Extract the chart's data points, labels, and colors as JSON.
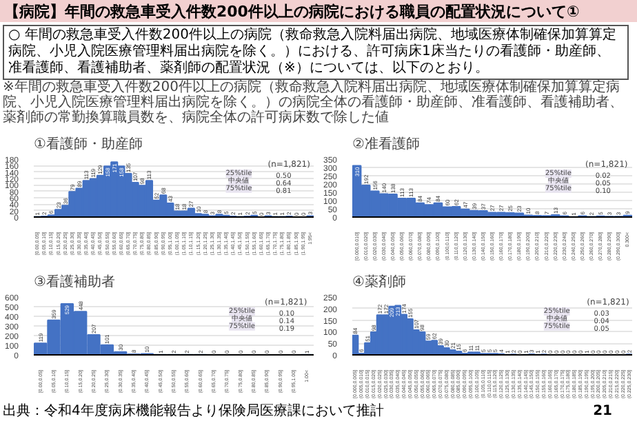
{
  "chart_data": [
    {
      "type": "other",
      "title": "【病院】年間の救急車受入件数200件以上の病院における職員の配置状況について①",
      "annotations": [
        "○ 年間の救急車受入件数200件以上の病院（救命救急入院料届出病院、地域医療体制確保加算算定病院、小児入院医療管理料届出病院を除く。）における、許可病床1床当たりの看護師・助産師、准看護師、看護補助者、薬剤師の配置状況（※）については、以下のとおり。",
        "※年間の救急車受入件数200件以上の病院（救命救急入院料届出病院、地域医療体制確保加算算定病院、小児入院医療管理料届出病院を除く。）の病院全体の看護師・助産師、准看護師、看護補助者、薬剤師の常勤換算職員数を、病院全体の許可病床数で除した値",
        "出典：令和4年度病床機能報告より保険局医療課において推計",
        "21"
      ]
    },
    {
      "type": "bar",
      "title": "①看護師・助産師",
      "color": "#4472c4",
      "categories": [
        "[0.00,0.05]",
        "(0.05,0.10]",
        "(0.10,0.15]",
        "(0.15,0.20]",
        "(0.20,0.25]",
        "(0.25,0.30]",
        "(0.30,0.35]",
        "(0.35,0.40]",
        "(0.40,0.45]",
        "(0.45,0.50]",
        "(0.50,0.55]",
        "(0.55,0.60]",
        "(0.60,0.65]",
        "(0.65,0.70]",
        "(0.70,0.75]",
        "(0.75,0.80]",
        "(0.80,0.85]",
        "(0.85,0.90]",
        "(0.90,0.95]",
        "(0.95,1.00]",
        "(1.00,1.05]",
        "(1.05,1.10]",
        "(1.10,1.15]",
        "(1.15,1.20]",
        "(1.20,1.25]",
        "(1.25,1.30]",
        "(1.30,1.35]",
        "(1.35,1.40]",
        "(1.40,1.45]",
        "(1.45,1.50]",
        "(1.50,1.55]",
        "(1.55,1.60]",
        "(1.60,1.65]",
        "(1.65,1.70]",
        "(1.70,1.75]",
        "(1.75,1.80]",
        "(1.80,1.85]",
        "(1.85,1.90]",
        "(1.90,1.95]",
        "1.95<"
      ],
      "values": [
        1,
        2,
        6,
        23,
        36,
        79,
        89,
        113,
        119,
        129,
        158,
        171,
        158,
        135,
        107,
        98,
        113,
        52,
        68,
        43,
        18,
        18,
        27,
        10,
        8,
        3,
        8,
        5,
        2,
        1,
        2,
        5,
        0,
        3,
        1,
        1,
        2,
        0,
        0,
        3
      ],
      "ylim": [
        0,
        180
      ],
      "yticks": [
        0,
        20,
        40,
        60,
        80,
        100,
        120,
        140,
        160,
        180
      ],
      "grid": "y",
      "data_labels": true,
      "annotations": [
        "(n=1,821)",
        "25%tile",
        "0.50",
        "中央値",
        "0.64",
        "75%tile",
        "0.81"
      ]
    },
    {
      "type": "bar",
      "title": "②准看護師",
      "color": "#4472c4",
      "categories": [
        "[0.000,0.010]",
        "(0.010,0.020]",
        "(0.020,0.030]",
        "(0.030,0.040]",
        "(0.040,0.050]",
        "(0.050,0.060]",
        "(0.060,0.070]",
        "(0.070,0.080]",
        "(0.080,0.090]",
        "(0.090,0.100]",
        "(0.100,0.110]",
        "(0.110,0.120]",
        "(0.120,0.130]",
        "(0.130,0.140]",
        "(0.140,0.150]",
        "(0.150,0.160]",
        "(0.160,0.170]",
        "(0.170,0.180]",
        "(0.180,0.190]",
        "(0.190,0.200]",
        "(0.200,0.210]",
        "(0.210,0.220]",
        "(0.220,0.230]",
        "(0.230,0.240]",
        "(0.240,0.250]",
        "(0.250,0.260]",
        "(0.260,0.270]",
        "(0.270,0.280]",
        "(0.280,0.290]",
        "(0.290,0.300]",
        "0.300<"
      ],
      "values": [
        310,
        192,
        156,
        140,
        138,
        113,
        113,
        84,
        74,
        84,
        60,
        62,
        47,
        39,
        37,
        27,
        27,
        25,
        23,
        10,
        8,
        7,
        13,
        6,
        1,
        6,
        2,
        5,
        3,
        3,
        9
      ],
      "ylim": [
        0,
        350
      ],
      "yticks": [
        0,
        50,
        100,
        150,
        200,
        250,
        300,
        350
      ],
      "grid": "y",
      "data_labels": true,
      "annotations": [
        "(n=1,821)",
        "25%tile",
        "0.02",
        "中央値",
        "0.05",
        "75%tile",
        "0.10"
      ]
    },
    {
      "type": "bar",
      "title": "③看護補助者",
      "color": "#4472c4",
      "categories": [
        "[0.00,0.05]",
        "(0.05,0.10]",
        "(0.10,0.15]",
        "(0.15,0.20]",
        "(0.20,0.25]",
        "(0.25,0.30]",
        "(0.30,0.35]",
        "(0.35,0.40]",
        "(0.40,0.45]",
        "(0.45,0.50]",
        "(0.50,0.55]",
        "(0.55,0.60]",
        "(0.60,0.65]",
        "(0.65,0.70]",
        "(0.70,0.75]",
        "(0.75,0.80]",
        "(0.80,0.85]",
        "(0.85,0.90]",
        "(0.90,0.95]",
        "(0.95,1.00]",
        "1.00<"
      ],
      "values": [
        119,
        359,
        529,
        448,
        207,
        101,
        30,
        8,
        10,
        1,
        2,
        2,
        2,
        0,
        0,
        0,
        0,
        0,
        0,
        0,
        1
      ],
      "ylim": [
        0,
        600
      ],
      "yticks": [
        0,
        100,
        200,
        300,
        400,
        500,
        600
      ],
      "grid": "y",
      "data_labels": true,
      "annotations": [
        "(n=1,821)",
        "25%tile",
        "0.10",
        "中央値",
        "0.14",
        "75%tile",
        "0.19"
      ]
    },
    {
      "type": "bar",
      "title": "④薬剤師",
      "color": "#4472c4",
      "categories": [
        "[0.000,0.005]",
        "(0.005,0.010]",
        "(0.010,0.015]",
        "(0.015,0.020]",
        "(0.020,0.025]",
        "(0.025,0.030]",
        "(0.030,0.035]",
        "(0.035,0.040]",
        "(0.040,0.045]",
        "(0.045,0.050]",
        "(0.050,0.055]",
        "(0.055,0.060]",
        "(0.060,0.065]",
        "(0.065,0.070]",
        "(0.070,0.075]",
        "(0.075,0.080]",
        "(0.080,0.085]",
        "(0.085,0.090]",
        "(0.090,0.095]",
        "(0.095,0.100]",
        "(0.100,0.105]",
        "(0.105,0.110]",
        "(0.110,0.115]",
        "(0.115,0.120]",
        "(0.120,0.125]",
        "(0.125,0.130]",
        "(0.130,0.135]",
        "(0.135,0.140]",
        "(0.140,0.145]",
        "(0.145,0.150]",
        "(0.150,0.155]",
        "(0.155,0.160]",
        "(0.160,0.165]",
        "(0.165,0.170]",
        "(0.170,0.175]",
        "(0.175,0.180]",
        "(0.180,0.185]",
        "(0.185,0.190]",
        "(0.190,0.195]",
        "(0.195,0.200]",
        "(0.200,0.205]",
        "(0.205,0.210]",
        "(0.210,0.215]",
        "(0.215,0.220]",
        "(0.220,0.225]",
        "(0.225,0.230]"
      ],
      "values": [
        84,
        6,
        51,
        98,
        172,
        172,
        209,
        213,
        174,
        155,
        107,
        98,
        59,
        62,
        39,
        30,
        21,
        15,
        6,
        11,
        11,
        5,
        5,
        5,
        4,
        1,
        2,
        0,
        1,
        3,
        1,
        2,
        0,
        0,
        0,
        0,
        0,
        0,
        1,
        0,
        0,
        0,
        0,
        0,
        0,
        2
      ],
      "ylim": [
        0,
        250
      ],
      "yticks": [
        0,
        50,
        100,
        150,
        200,
        250
      ],
      "grid": "y",
      "data_labels": true,
      "annotations": [
        "(n=1,821)",
        "25%tile",
        "0.03",
        "中央値",
        "0.04",
        "75%tile",
        "0.05"
      ]
    }
  ]
}
